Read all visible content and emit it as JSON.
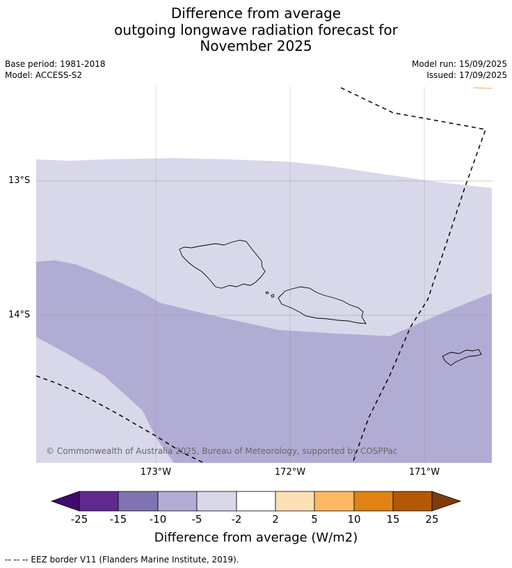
{
  "title": {
    "line1": "Difference from average",
    "line2": "outgoing longwave radiation forecast for",
    "line3": "November 2025"
  },
  "meta": {
    "base_period": "Base period: 1981-2018",
    "model": "Model: ACCESS-S2",
    "model_run": "Model run: 15/09/2025",
    "issued": "Issued: 17/09/2025"
  },
  "map": {
    "lat_labels": [
      "13°S",
      "14°S"
    ],
    "lon_labels": [
      "173°W",
      "172°W",
      "171°W"
    ],
    "copyright": "© Commonwealth of Australia 2025, Bureau of Meteorology, supported by COSPPac",
    "colors": {
      "band_-5_-2": "#d8d8ea",
      "band_-10_-5": "#b1acd3"
    }
  },
  "colorbar": {
    "label": "Difference from average (W/m2)",
    "ticks": [
      "-25",
      "-15",
      "-10",
      "-5",
      "-2",
      "2",
      "5",
      "10",
      "15",
      "25"
    ],
    "colors": [
      "#3f0a70",
      "#5e2a8f",
      "#8073b1",
      "#b1acd3",
      "#d8d8ea",
      "#ffffff",
      "#fee0b6",
      "#fdb863",
      "#e08214",
      "#b35806",
      "#7f3b08"
    ]
  },
  "footnote": "--  --  -- EEZ border V11 (Flanders Marine Institute, 2019)."
}
